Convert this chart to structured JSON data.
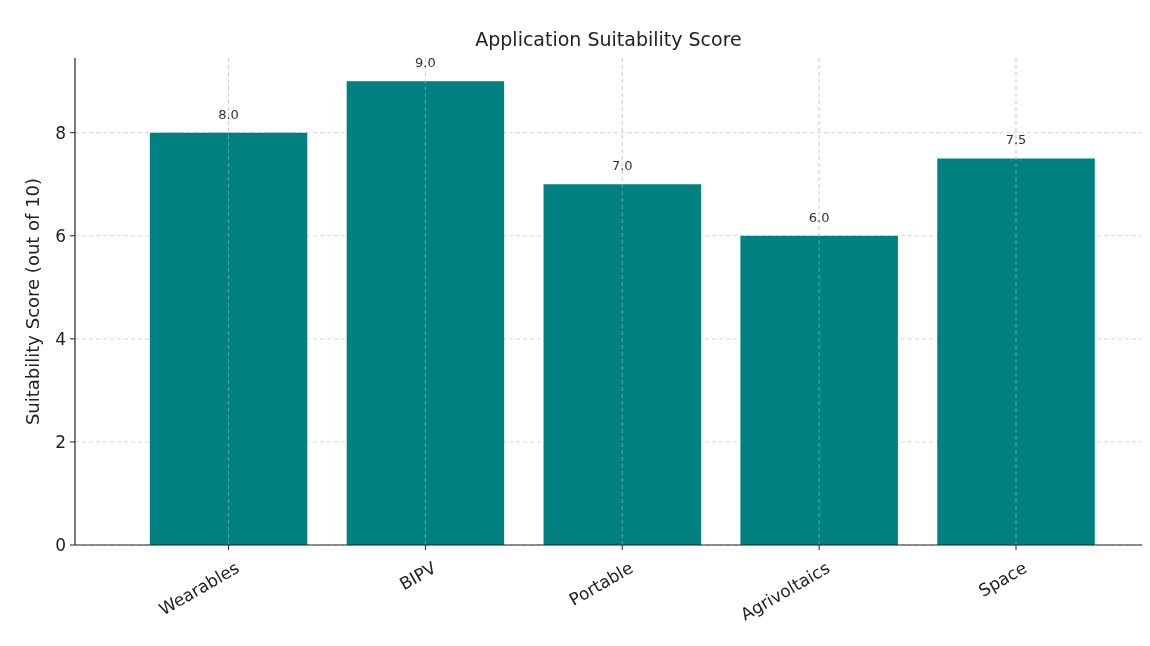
{
  "chart_data": {
    "type": "bar",
    "title": "Application Suitability Score",
    "ylabel": "Suitability Score (out of 10)",
    "categories": [
      "Wearables",
      "BIPV",
      "Portable",
      "Agrivoltaics",
      "Space"
    ],
    "values": [
      8.0,
      9.0,
      7.0,
      6.0,
      7.5
    ],
    "value_labels": [
      "8.0",
      "9.0",
      "7.0",
      "6.0",
      "7.5"
    ],
    "color": "#008080",
    "ylim": [
      0,
      9.45
    ],
    "yticks": [
      0,
      2,
      4,
      6,
      8
    ],
    "grid": true
  }
}
